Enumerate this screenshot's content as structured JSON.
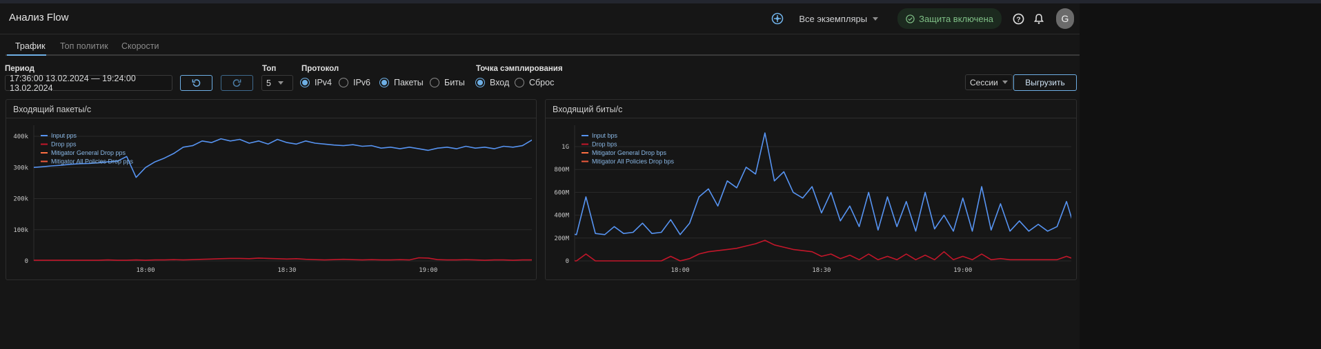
{
  "header": {
    "title": "Анализ Flow",
    "instances": "Все экземпляры",
    "protection": "Защита включена",
    "avatar": "G"
  },
  "tabs": [
    {
      "label": "Трафик",
      "active": true
    },
    {
      "label": "Топ политик"
    },
    {
      "label": "Скорости"
    }
  ],
  "filters": {
    "period_label": "Период",
    "period_value": "17:36:00 13.02.2024 — 19:24:00 13.02.2024",
    "top_label": "Топ",
    "top_value": "5",
    "protocol_label": "Протокол",
    "protocol_options": [
      {
        "label": "IPv4",
        "checked": true
      },
      {
        "label": "IPv6",
        "checked": false
      }
    ],
    "unit_options": [
      {
        "label": "Пакеты",
        "checked": true
      },
      {
        "label": "Биты",
        "checked": false
      }
    ],
    "sampling_label": "Точка сэмплирования",
    "sampling_options": [
      {
        "label": "Вход",
        "checked": true
      },
      {
        "label": "Сброс",
        "checked": false
      }
    ],
    "sessions_label": "Сессии",
    "export_label": "Выгрузить"
  },
  "colors": {
    "accent": "#6fb0e6",
    "input": "#5794f2",
    "drop": "#c4162a",
    "general": "#ff7043",
    "all": "#f05a3c"
  },
  "chart_data": [
    {
      "type": "line",
      "title": "Входящий пакеты/с",
      "x_start": "17:36",
      "x_step_min": 2,
      "xticks": [
        "18:00",
        "18:30",
        "19:00"
      ],
      "yticks": [
        "0",
        "100k",
        "200k",
        "300k",
        "400k"
      ],
      "ylim": [
        0,
        400000
      ],
      "legend": [
        "Input pps",
        "Drop pps",
        "Mitigator General Drop pps",
        "Mitigator All Policies Drop pps"
      ],
      "series": [
        {
          "name": "Input pps",
          "values": [
            300000,
            302000,
            305000,
            307000,
            310000,
            312000,
            313000,
            315000,
            318000,
            320000,
            335000,
            268000,
            300000,
            318000,
            330000,
            345000,
            365000,
            370000,
            385000,
            380000,
            392000,
            385000,
            390000,
            378000,
            385000,
            375000,
            390000,
            380000,
            375000,
            385000,
            378000,
            375000,
            372000,
            370000,
            373000,
            368000,
            370000,
            362000,
            365000,
            360000,
            365000,
            360000,
            355000,
            362000,
            365000,
            360000,
            368000,
            362000,
            365000,
            360000,
            368000,
            365000,
            370000,
            388000,
            372000
          ]
        },
        {
          "name": "Drop pps",
          "values": [
            2000,
            2000,
            2000,
            2000,
            2000,
            2000,
            2000,
            2000,
            3000,
            2000,
            2000,
            3000,
            2000,
            3000,
            3000,
            4000,
            3000,
            4000,
            5000,
            6000,
            7000,
            8000,
            8000,
            7000,
            9000,
            8000,
            7000,
            6000,
            7000,
            5000,
            4000,
            3000,
            4000,
            5000,
            4000,
            3000,
            4000,
            3000,
            3000,
            4000,
            3000,
            10000,
            9000,
            4000,
            3000,
            3000,
            4000,
            3000,
            2000,
            3000,
            3000,
            2000,
            3000,
            3000,
            6000
          ]
        },
        {
          "name": "Mitigator General Drop pps",
          "values": []
        },
        {
          "name": "Mitigator All Policies Drop pps",
          "values": []
        }
      ]
    },
    {
      "type": "line",
      "title": "Входящий биты/с",
      "x_start": "17:36",
      "x_step_min": 2,
      "xticks": [
        "18:00",
        "18:30",
        "19:00"
      ],
      "yticks": [
        "0",
        "200M",
        "400M",
        "600M",
        "800M",
        "1G"
      ],
      "ylim": [
        0,
        1000000000
      ],
      "legend": [
        "Input bps",
        "Drop bps",
        "Mitigator General Drop bps",
        "Mitigator All Policies Drop bps"
      ],
      "series": [
        {
          "name": "Input bps",
          "values": [
            240000000.0,
            230000000.0,
            560000000.0,
            240000000.0,
            230000000.0,
            300000000.0,
            240000000.0,
            250000000.0,
            330000000.0,
            240000000.0,
            250000000.0,
            360000000.0,
            230000000.0,
            330000000.0,
            560000000.0,
            630000000.0,
            480000000.0,
            700000000.0,
            640000000.0,
            820000000.0,
            760000000.0,
            1120000000.0,
            700000000.0,
            780000000.0,
            600000000.0,
            550000000.0,
            650000000.0,
            420000000.0,
            600000000.0,
            350000000.0,
            480000000.0,
            300000000.0,
            600000000.0,
            270000000.0,
            560000000.0,
            300000000.0,
            520000000.0,
            260000000.0,
            600000000.0,
            280000000.0,
            400000000.0,
            260000000.0,
            550000000.0,
            260000000.0,
            650000000.0,
            270000000.0,
            500000000.0,
            260000000.0,
            350000000.0,
            260000000.0,
            320000000.0,
            260000000.0,
            300000000.0,
            520000000.0,
            250000000.0
          ]
        },
        {
          "name": "Drop bps",
          "values": [
            0,
            0,
            60000000.0,
            0,
            0,
            0,
            0,
            0,
            0,
            0,
            0,
            40000000.0,
            0,
            20000000.0,
            60000000.0,
            80000000.0,
            90000000.0,
            100000000.0,
            110000000.0,
            130000000.0,
            150000000.0,
            180000000.0,
            140000000.0,
            120000000.0,
            100000000.0,
            90000000.0,
            80000000.0,
            40000000.0,
            60000000.0,
            20000000.0,
            50000000.0,
            10000000.0,
            60000000.0,
            10000000.0,
            40000000.0,
            10000000.0,
            60000000.0,
            10000000.0,
            50000000.0,
            10000000.0,
            80000000.0,
            10000000.0,
            40000000.0,
            10000000.0,
            60000000.0,
            10000000.0,
            20000000.0,
            10000000.0,
            10000000.0,
            10000000.0,
            10000000.0,
            10000000.0,
            10000000.0,
            40000000.0,
            10000000.0
          ]
        },
        {
          "name": "Mitigator General Drop bps",
          "values": []
        },
        {
          "name": "Mitigator All Policies Drop bps",
          "values": []
        }
      ]
    }
  ]
}
